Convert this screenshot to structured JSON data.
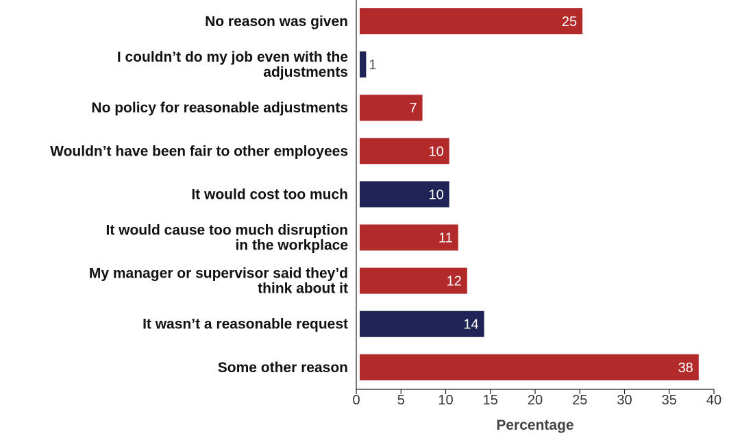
{
  "chart_data": {
    "type": "bar",
    "orientation": "horizontal",
    "categories": [
      [
        "No reason was given"
      ],
      [
        "I couldn’t do my job even with the",
        "adjustments"
      ],
      [
        "No policy for reasonable adjustments"
      ],
      [
        "Wouldn’t have been fair to other employees"
      ],
      [
        "It would cost too much"
      ],
      [
        "It would cause too much disruption",
        "in the workplace"
      ],
      [
        "My manager or supervisor said they’d",
        "think about it"
      ],
      [
        "It wasn’t a reasonable request"
      ],
      [
        "Some other reason"
      ]
    ],
    "values": [
      25.3,
      1.1,
      7.4,
      10.4,
      10.4,
      11.4,
      12.4,
      14.3,
      38.3
    ],
    "data_labels": [
      "25",
      "1",
      "7",
      "10",
      "10",
      "11",
      "12",
      "14",
      "38"
    ],
    "bar_colors": [
      "#b22a2a",
      "#1f2355",
      "#b22a2a",
      "#b22a2a",
      "#1f2355",
      "#b22a2a",
      "#b22a2a",
      "#1f2355",
      "#b22a2a"
    ],
    "colors": {
      "red": "#b22a2a",
      "navy": "#1f2355"
    },
    "xlim": [
      0,
      40
    ],
    "xticks": [
      0,
      5,
      10,
      15,
      20,
      25,
      30,
      35,
      40
    ],
    "xlabel": "Percentage",
    "title": "",
    "grid": false,
    "legend": "none"
  }
}
